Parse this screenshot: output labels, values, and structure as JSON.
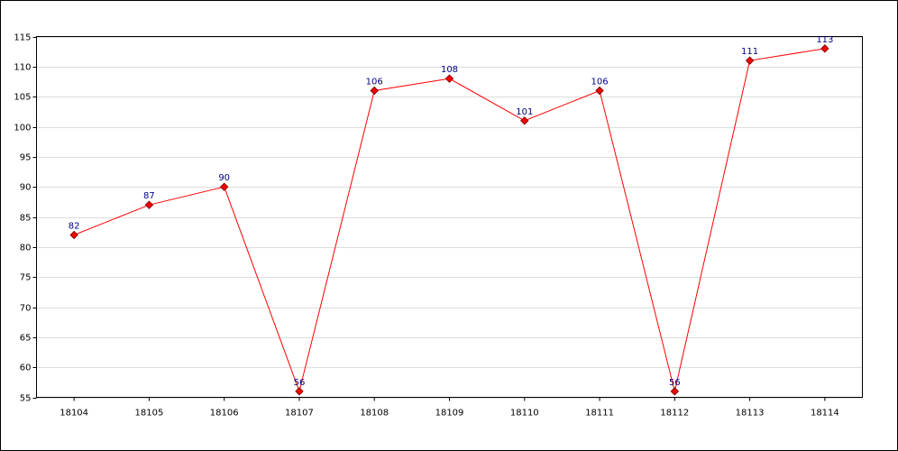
{
  "chart_data": {
    "type": "line",
    "categories": [
      "18104",
      "18105",
      "18106",
      "18107",
      "18108",
      "18109",
      "18110",
      "18111",
      "18112",
      "18113",
      "18114"
    ],
    "series": [
      {
        "color": "#ff0000",
        "values": [
          82,
          87,
          90,
          56,
          106,
          108,
          101,
          106,
          56,
          111,
          113
        ]
      }
    ],
    "ylim": [
      55,
      115
    ],
    "yticks": [
      55,
      60,
      65,
      70,
      75,
      80,
      85,
      90,
      95,
      100,
      105,
      110,
      115
    ],
    "grid": true
  }
}
